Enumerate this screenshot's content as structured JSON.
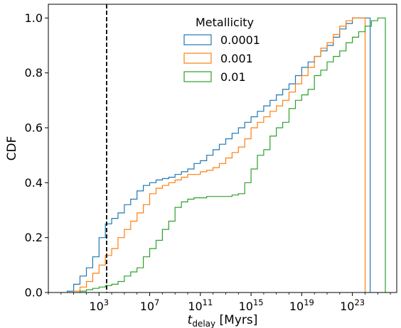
{
  "chart_data": {
    "type": "step-cdf",
    "xscale": "log",
    "xlim": [
      -1,
      26.5
    ],
    "ylim": [
      0,
      1.05
    ],
    "xlabel_main": "t",
    "xlabel_sub": "delay",
    "xlabel_unit": " [Myrs]",
    "ylabel": "CDF",
    "x_ticks": [
      {
        "exp": 3,
        "base": "10",
        "power": "3"
      },
      {
        "exp": 7,
        "base": "10",
        "power": "7"
      },
      {
        "exp": 11,
        "base": "10",
        "power": "11"
      },
      {
        "exp": 15,
        "base": "10",
        "power": "15"
      },
      {
        "exp": 19,
        "base": "10",
        "power": "19"
      },
      {
        "exp": 23,
        "base": "10",
        "power": "23"
      }
    ],
    "y_ticks": [
      {
        "value": 0.0,
        "label": "0.0"
      },
      {
        "value": 0.2,
        "label": "0.2"
      },
      {
        "value": 0.4,
        "label": "0.4"
      },
      {
        "value": 0.6,
        "label": "0.6"
      },
      {
        "value": 0.8,
        "label": "0.8"
      },
      {
        "value": 1.0,
        "label": "1.0"
      }
    ],
    "vline_exp": 3.6,
    "legend": {
      "title": "Metallicity",
      "placement": "top-center"
    },
    "series": [
      {
        "name": "0.0001",
        "color": "#1f77b4",
        "points": [
          [
            0.5,
            0.005
          ],
          [
            1.0,
            0.03
          ],
          [
            1.5,
            0.06
          ],
          [
            2.0,
            0.09
          ],
          [
            2.5,
            0.13
          ],
          [
            3.0,
            0.2
          ],
          [
            3.5,
            0.25
          ],
          [
            4.0,
            0.27
          ],
          [
            4.5,
            0.29
          ],
          [
            5.0,
            0.32
          ],
          [
            5.5,
            0.34
          ],
          [
            6.0,
            0.37
          ],
          [
            6.5,
            0.39
          ],
          [
            7.0,
            0.4
          ],
          [
            7.5,
            0.41
          ],
          [
            8.0,
            0.415
          ],
          [
            8.5,
            0.42
          ],
          [
            9.0,
            0.43
          ],
          [
            9.5,
            0.44
          ],
          [
            10.0,
            0.45
          ],
          [
            10.5,
            0.47
          ],
          [
            11.0,
            0.48
          ],
          [
            11.5,
            0.5
          ],
          [
            12.0,
            0.52
          ],
          [
            12.5,
            0.54
          ],
          [
            13.0,
            0.56
          ],
          [
            13.5,
            0.58
          ],
          [
            14.0,
            0.6
          ],
          [
            14.5,
            0.62
          ],
          [
            15.0,
            0.64
          ],
          [
            15.5,
            0.66
          ],
          [
            16.0,
            0.68
          ],
          [
            16.5,
            0.7
          ],
          [
            17.0,
            0.72
          ],
          [
            17.5,
            0.74
          ],
          [
            18.0,
            0.76
          ],
          [
            18.5,
            0.79
          ],
          [
            19.0,
            0.82
          ],
          [
            19.5,
            0.84
          ],
          [
            20.0,
            0.86
          ],
          [
            20.5,
            0.88
          ],
          [
            21.0,
            0.9
          ],
          [
            21.5,
            0.93
          ],
          [
            22.0,
            0.96
          ],
          [
            22.5,
            0.98
          ],
          [
            23.0,
            1.0
          ],
          [
            24.4,
            0.0
          ]
        ]
      },
      {
        "name": "0.001",
        "color": "#ff7f0e",
        "points": [
          [
            1.0,
            0.005
          ],
          [
            1.5,
            0.02
          ],
          [
            2.0,
            0.04
          ],
          [
            2.5,
            0.07
          ],
          [
            3.0,
            0.1
          ],
          [
            3.5,
            0.135
          ],
          [
            4.0,
            0.16
          ],
          [
            4.5,
            0.2
          ],
          [
            5.0,
            0.23
          ],
          [
            5.5,
            0.26
          ],
          [
            6.0,
            0.29
          ],
          [
            6.5,
            0.32
          ],
          [
            7.0,
            0.36
          ],
          [
            7.5,
            0.38
          ],
          [
            8.0,
            0.39
          ],
          [
            8.5,
            0.4
          ],
          [
            9.0,
            0.41
          ],
          [
            9.5,
            0.42
          ],
          [
            10.0,
            0.43
          ],
          [
            10.5,
            0.43
          ],
          [
            11.0,
            0.44
          ],
          [
            11.5,
            0.445
          ],
          [
            12.0,
            0.455
          ],
          [
            12.5,
            0.47
          ],
          [
            13.0,
            0.49
          ],
          [
            13.5,
            0.51
          ],
          [
            14.0,
            0.53
          ],
          [
            14.5,
            0.56
          ],
          [
            15.0,
            0.6
          ],
          [
            15.5,
            0.62
          ],
          [
            16.0,
            0.64
          ],
          [
            16.5,
            0.66
          ],
          [
            17.0,
            0.68
          ],
          [
            17.5,
            0.7
          ],
          [
            18.0,
            0.73
          ],
          [
            18.5,
            0.76
          ],
          [
            19.0,
            0.79
          ],
          [
            19.5,
            0.82
          ],
          [
            20.0,
            0.86
          ],
          [
            20.5,
            0.89
          ],
          [
            21.0,
            0.91
          ],
          [
            21.5,
            0.94
          ],
          [
            22.0,
            0.97
          ],
          [
            22.5,
            0.99
          ],
          [
            23.0,
            1.0
          ],
          [
            24.0,
            0.0
          ]
        ]
      },
      {
        "name": "0.01",
        "color": "#2ca02c",
        "points": [
          [
            1.5,
            0.005
          ],
          [
            2.0,
            0.01
          ],
          [
            2.5,
            0.015
          ],
          [
            3.0,
            0.02
          ],
          [
            3.5,
            0.025
          ],
          [
            4.0,
            0.03
          ],
          [
            4.5,
            0.04
          ],
          [
            5.0,
            0.06
          ],
          [
            5.5,
            0.075
          ],
          [
            6.0,
            0.09
          ],
          [
            6.5,
            0.13
          ],
          [
            7.0,
            0.16
          ],
          [
            7.5,
            0.19
          ],
          [
            8.0,
            0.23
          ],
          [
            8.5,
            0.26
          ],
          [
            9.0,
            0.31
          ],
          [
            9.5,
            0.33
          ],
          [
            10.0,
            0.34
          ],
          [
            10.5,
            0.345
          ],
          [
            11.0,
            0.345
          ],
          [
            11.5,
            0.35
          ],
          [
            12.0,
            0.35
          ],
          [
            12.5,
            0.35
          ],
          [
            13.0,
            0.35
          ],
          [
            13.5,
            0.355
          ],
          [
            14.0,
            0.36
          ],
          [
            14.5,
            0.4
          ],
          [
            15.0,
            0.45
          ],
          [
            15.5,
            0.5
          ],
          [
            16.0,
            0.52
          ],
          [
            16.5,
            0.57
          ],
          [
            17.0,
            0.6
          ],
          [
            17.5,
            0.62
          ],
          [
            18.0,
            0.67
          ],
          [
            18.5,
            0.7
          ],
          [
            19.0,
            0.72
          ],
          [
            19.5,
            0.74
          ],
          [
            20.0,
            0.79
          ],
          [
            20.5,
            0.81
          ],
          [
            21.0,
            0.84
          ],
          [
            21.5,
            0.86
          ],
          [
            22.0,
            0.88
          ],
          [
            22.5,
            0.91
          ],
          [
            23.0,
            0.93
          ],
          [
            23.5,
            0.95
          ],
          [
            24.0,
            0.97
          ],
          [
            24.5,
            0.99
          ],
          [
            25.0,
            1.0
          ],
          [
            25.6,
            0.0
          ]
        ]
      }
    ]
  }
}
